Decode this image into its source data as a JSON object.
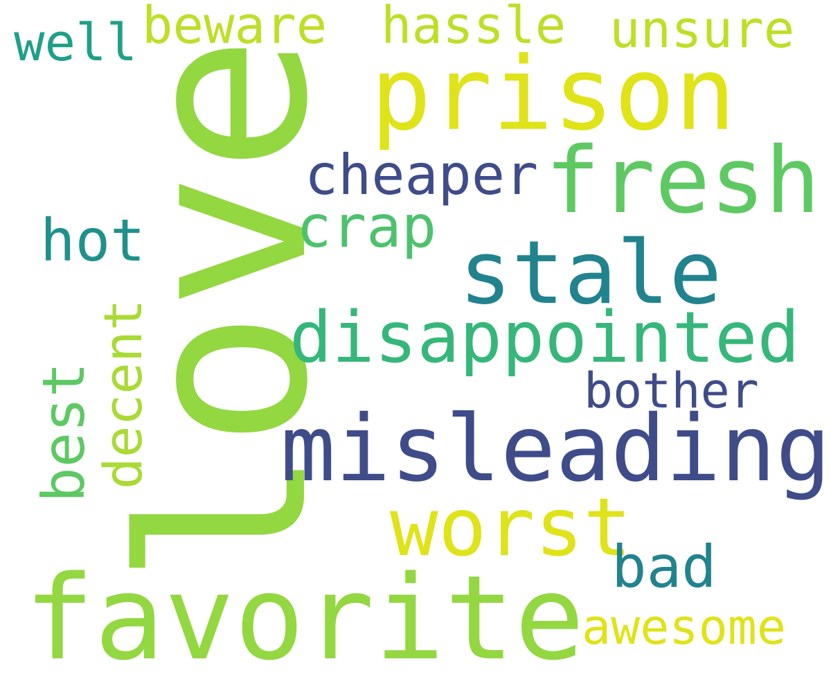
{
  "words": [
    {
      "text": "love",
      "color": "#93d741",
      "orientation": "vertical"
    },
    {
      "text": "favorite",
      "color": "#93d741",
      "orientation": "horizontal"
    },
    {
      "text": "prison",
      "color": "#dfe318",
      "orientation": "horizontal"
    },
    {
      "text": "misleading",
      "color": "#3e4c8a",
      "orientation": "horizontal"
    },
    {
      "text": "fresh",
      "color": "#5ec962",
      "orientation": "horizontal"
    },
    {
      "text": "stale",
      "color": "#21838e",
      "orientation": "horizontal"
    },
    {
      "text": "disappointed",
      "color": "#35b779",
      "orientation": "horizontal"
    },
    {
      "text": "worst",
      "color": "#dfe318",
      "orientation": "horizontal"
    },
    {
      "text": "cheaper",
      "color": "#3e4c8a",
      "orientation": "horizontal"
    },
    {
      "text": "crap",
      "color": "#4cc26c",
      "orientation": "horizontal"
    },
    {
      "text": "hot",
      "color": "#1f918c",
      "orientation": "horizontal"
    },
    {
      "text": "bother",
      "color": "#3e4c8a",
      "orientation": "horizontal"
    },
    {
      "text": "bad",
      "color": "#21838e",
      "orientation": "horizontal"
    },
    {
      "text": "awesome",
      "color": "#dfe318",
      "orientation": "horizontal"
    },
    {
      "text": "decent",
      "color": "#a8db34",
      "orientation": "vertical"
    },
    {
      "text": "best",
      "color": "#5ec962",
      "orientation": "vertical"
    },
    {
      "text": "well",
      "color": "#1fa088",
      "orientation": "horizontal"
    },
    {
      "text": "beware",
      "color": "#bddf26",
      "orientation": "horizontal"
    },
    {
      "text": "hassle",
      "color": "#bddf26",
      "orientation": "horizontal"
    },
    {
      "text": "unsure",
      "color": "#bddf26",
      "orientation": "horizontal"
    }
  ]
}
